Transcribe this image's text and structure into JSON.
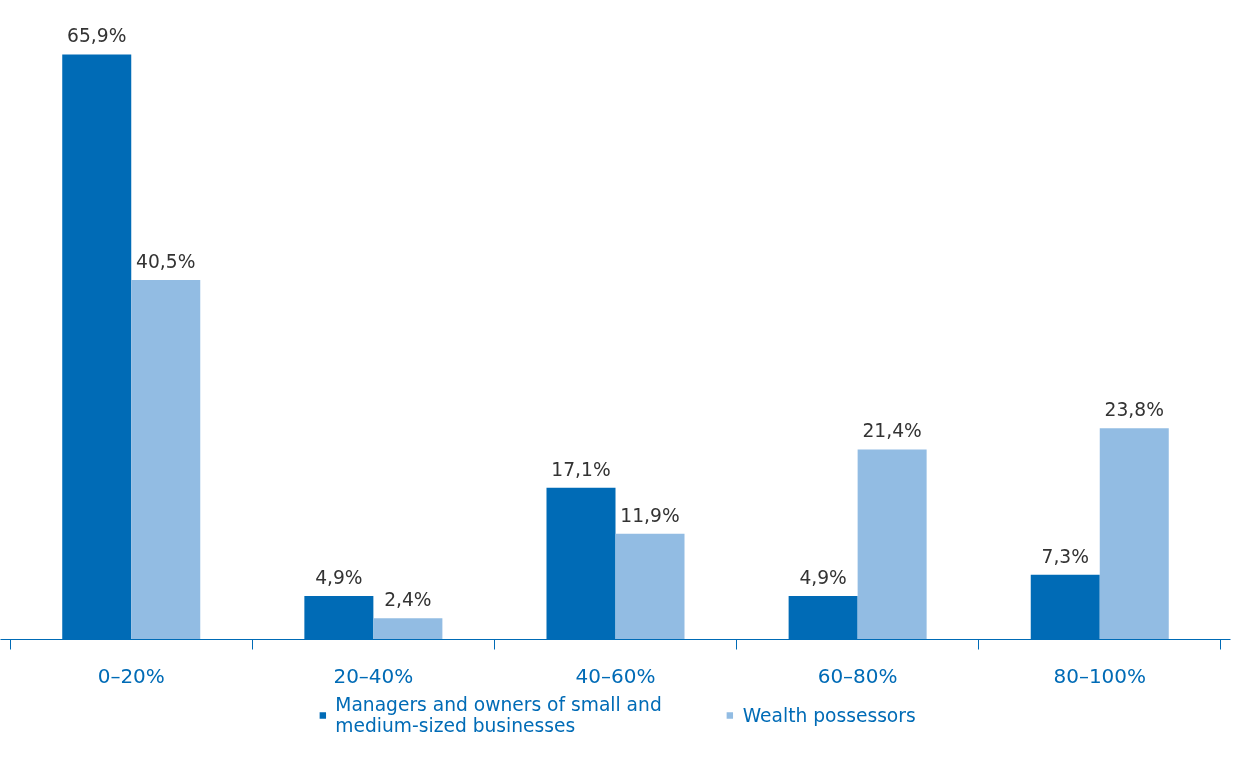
{
  "chart_data": {
    "type": "bar",
    "categories": [
      "0–20%",
      "20–40%",
      "40–60%",
      "60–80%",
      "80–100%"
    ],
    "series": [
      {
        "name": "Managers and owners of small and medium-sized businesses",
        "color": "#006bb6",
        "values": [
          65.9,
          4.9,
          17.1,
          4.9,
          7.3
        ],
        "value_labels": [
          "65,9%",
          "4,9%",
          "17,1%",
          "4,9%",
          "7,3%"
        ]
      },
      {
        "name": "Wealth possessors",
        "color": "#92bce3",
        "values": [
          40.5,
          2.4,
          11.9,
          21.4,
          23.8
        ],
        "value_labels": [
          "40,5%",
          "2,4%",
          "11,9%",
          "21,4%",
          "23,8%"
        ]
      }
    ],
    "legend": "bottom",
    "grid": false
  }
}
